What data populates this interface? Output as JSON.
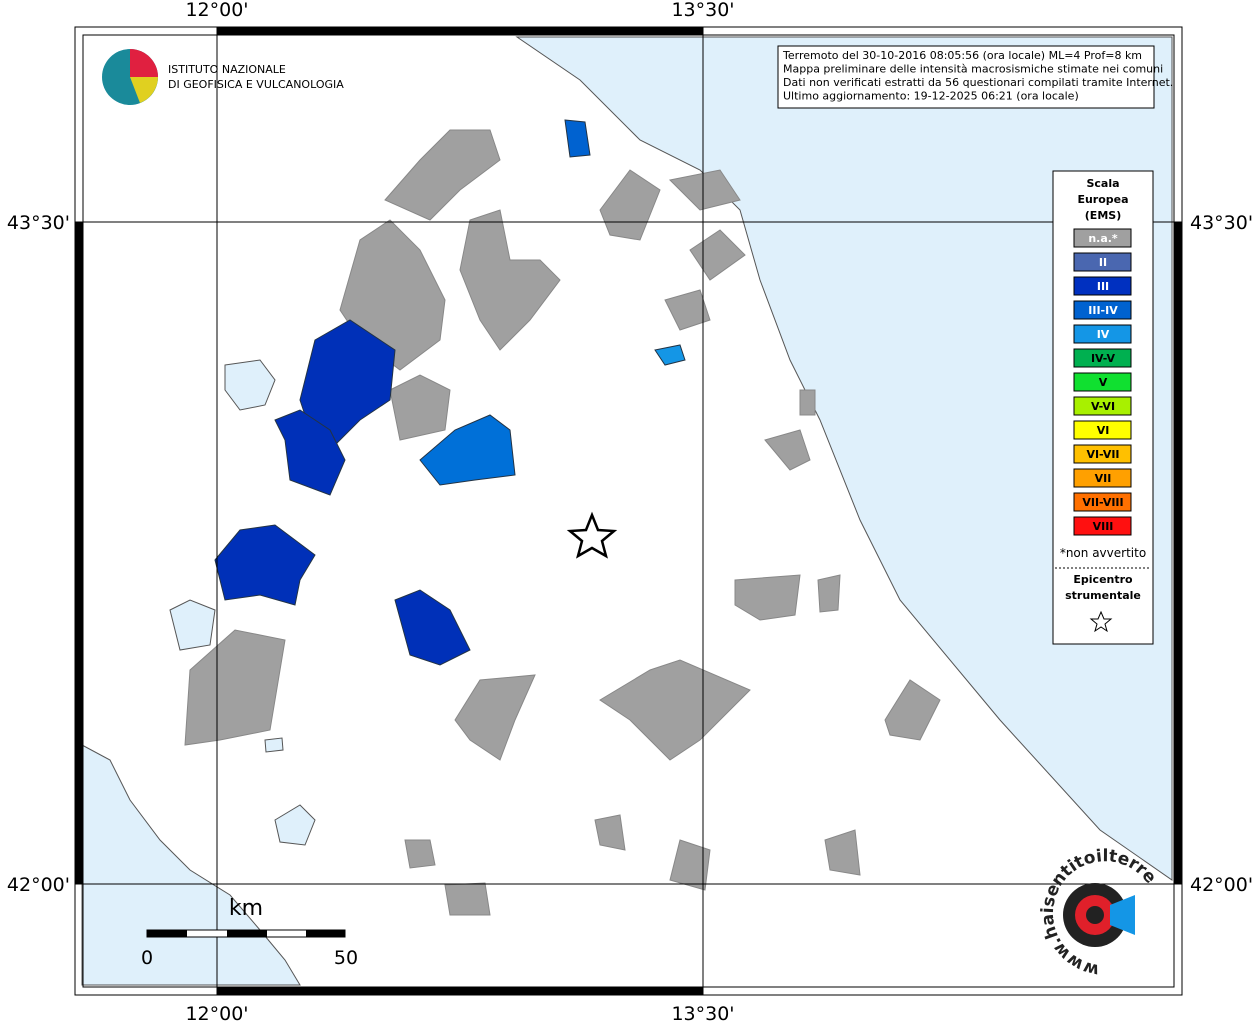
{
  "axes": {
    "top": [
      "12°00'",
      "13°30'"
    ],
    "bottom": [
      "12°00'",
      "13°30'"
    ],
    "left": [
      "43°30'",
      "42°00'"
    ],
    "right": [
      "43°30'",
      "42°00'"
    ]
  },
  "logo": {
    "line1": "ISTITUTO NAZIONALE",
    "line2": "DI GEOFISICA E VULCANOLOGIA"
  },
  "info": [
    "Terremoto del 30-10-2016 08:05:56 (ora locale) ML=4 Prof=8 km",
    "Mappa preliminare delle intensità macrosismiche stimate nei comuni",
    "Dati non verificati estratti da 56 questionari compilati tramite Internet.",
    "Ultimo aggiornamento: 19-12-2025 06:21 (ora locale)"
  ],
  "legend": {
    "title": [
      "Scala",
      "Europea",
      "(EMS)"
    ],
    "items": [
      {
        "label": "n.a.*",
        "color": "#a0a0a0"
      },
      {
        "label": "II",
        "color": "#4a67b0"
      },
      {
        "label": "III",
        "color": "#0030c0"
      },
      {
        "label": "III-IV",
        "color": "#0062d0"
      },
      {
        "label": "IV",
        "color": "#1496e6"
      },
      {
        "label": "IV-V",
        "color": "#00b050"
      },
      {
        "label": "V",
        "color": "#10e030"
      },
      {
        "label": "V-VI",
        "color": "#a8f000"
      },
      {
        "label": "VI",
        "color": "#ffff00"
      },
      {
        "label": "VI-VII",
        "color": "#ffc000"
      },
      {
        "label": "VII",
        "color": "#ffa000"
      },
      {
        "label": "VII-VIII",
        "color": "#ff7000"
      },
      {
        "label": "VIII",
        "color": "#ff1010"
      }
    ],
    "note": "*non avvertito",
    "epicentre": [
      "Epicentro",
      "strumentale"
    ]
  },
  "scale": {
    "unit": "km",
    "start": "0",
    "end": "50"
  },
  "watermark": "www.haisentitoilterremoto.it"
}
